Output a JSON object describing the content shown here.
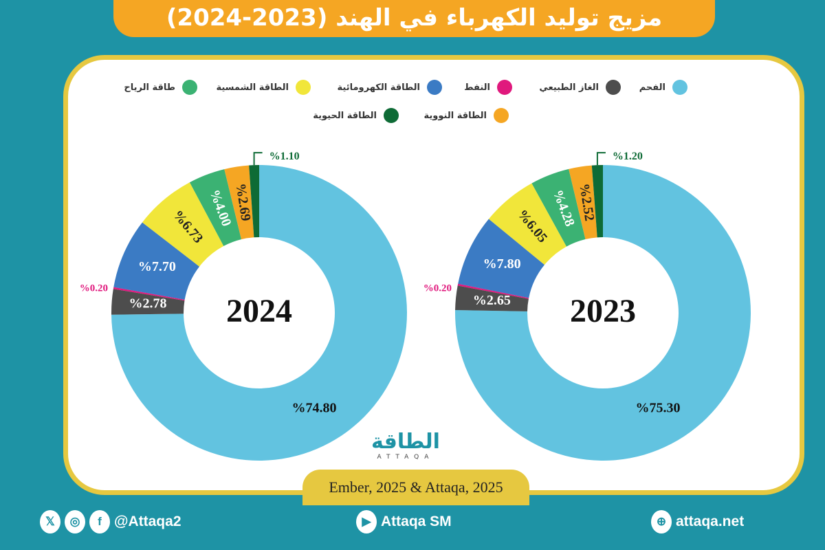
{
  "title": "مزيج توليد الكهرباء في الهند (2023-2024)",
  "legend": [
    {
      "label": "الفحم",
      "color": "#62c3e0"
    },
    {
      "label": "الغاز الطبيعي",
      "color": "#4d4d4d"
    },
    {
      "label": "النفط",
      "color": "#e0197d"
    },
    {
      "label": "الطاقة الكهرومائية",
      "color": "#3b7bc4"
    },
    {
      "label": "الطاقة الشمسية",
      "color": "#f1e63a"
    },
    {
      "label": "طاقة الرياح",
      "color": "#3bb273"
    },
    {
      "label": "الطاقة النووية",
      "color": "#f5a623"
    },
    {
      "label": "الطاقة الحيوية",
      "color": "#0e6b36"
    }
  ],
  "chart_data": [
    {
      "type": "pie",
      "donut": true,
      "center_label": "2024",
      "categories": [
        "الفحم",
        "الغاز الطبيعي",
        "النفط",
        "الطاقة الكهرومائية",
        "الطاقة الشمسية",
        "طاقة الرياح",
        "الطاقة النووية",
        "الطاقة الحيوية"
      ],
      "values": [
        74.8,
        2.78,
        0.2,
        7.7,
        6.73,
        4.0,
        2.69,
        1.1
      ],
      "data_labels": [
        "%74.80",
        "%2.78",
        "%0.20",
        "%7.70",
        "%6.73",
        "%4.00",
        "%2.69",
        "%1.10"
      ]
    },
    {
      "type": "pie",
      "donut": true,
      "center_label": "2023",
      "categories": [
        "الفحم",
        "الغاز الطبيعي",
        "النفط",
        "الطاقة الكهرومائية",
        "الطاقة الشمسية",
        "طاقة الرياح",
        "الطاقة النووية",
        "الطاقة الحيوية"
      ],
      "values": [
        75.3,
        2.65,
        0.2,
        7.8,
        6.05,
        4.28,
        2.52,
        1.2
      ],
      "data_labels": [
        "%75.30",
        "%2.65",
        "%0.20",
        "%7.80",
        "%6.05",
        "%4.28",
        "%2.52",
        "%1.20"
      ]
    }
  ],
  "logo": {
    "arabic": "الطاقة",
    "english": "ATTAQA"
  },
  "source": "Ember, 2025 & Attaqa, 2025",
  "footer": {
    "social_handle": "@Attaqa2",
    "youtube": "Attaqa SM",
    "website": "attaqa.net",
    "icons": [
      "x-icon",
      "instagram-icon",
      "facebook-icon",
      "youtube-icon",
      "globe-icon"
    ]
  }
}
